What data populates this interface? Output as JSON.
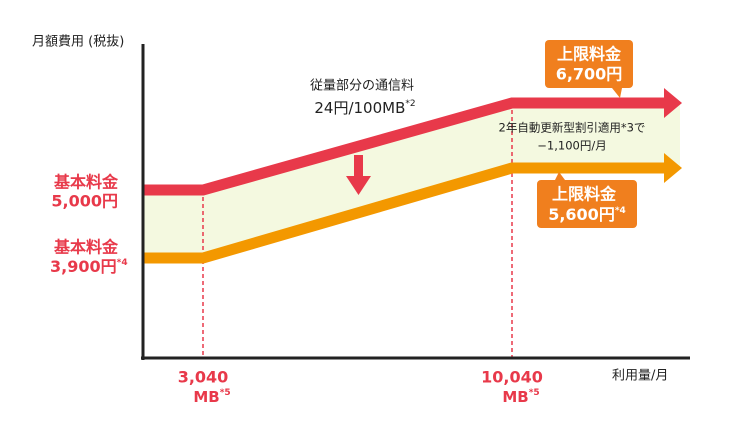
{
  "y_axis_label": "月額費用 (税抜)",
  "x_axis_label": "利用量/月",
  "base_labels": [
    {
      "label": "基本料金",
      "value": "5,000円"
    },
    {
      "label": "基本料金",
      "value": "3,900円",
      "note": "*4"
    }
  ],
  "breakpoints": [
    {
      "value": "3,040",
      "unit": "MB",
      "note": "*5"
    },
    {
      "value": "10,040",
      "unit": "MB",
      "note": "*5"
    }
  ],
  "slope": {
    "title": "従量部分の通信料",
    "rate": "24円/100MB",
    "note": "*2"
  },
  "discount": [
    "2年自動更新型割引適用*3で",
    "−1,100円/月"
  ],
  "caps": [
    {
      "label": "上限料金",
      "value": "6,700円"
    },
    {
      "label": "上限料金",
      "value": "5,600円",
      "note": "*4"
    }
  ]
}
